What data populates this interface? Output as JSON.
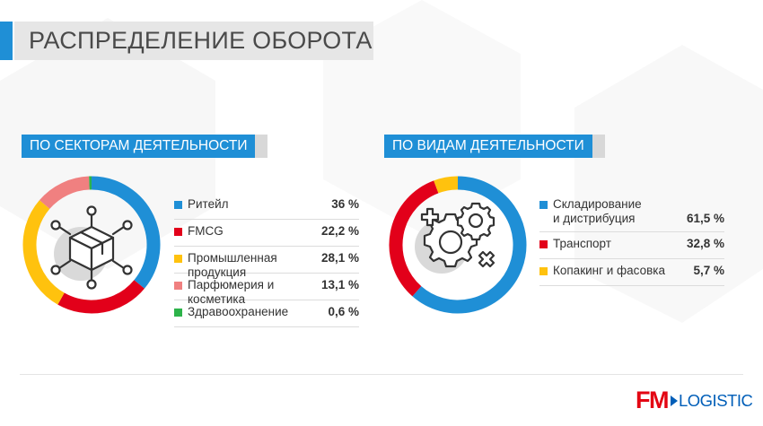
{
  "title": "РАСПРЕДЕЛЕНИЕ ОБОРОТА",
  "left_section": {
    "heading": "ПО СЕКТОРАМ ДЕЯТЕЛЬНОСТИ",
    "icon": "network-package-icon"
  },
  "right_section": {
    "heading": "ПО ВИДАМ ДЕЯТЕЛЬНОСТИ",
    "icon": "gears-icon"
  },
  "chart_data": [
    {
      "type": "pie",
      "categories": [
        "Ритейл",
        "FMCG",
        "Промышленная продукция",
        "Парфюмерия и косметика",
        "Здравоохранение"
      ],
      "values": [
        36,
        22.2,
        28.1,
        13.1,
        0.6
      ],
      "value_labels": [
        "36 %",
        "22,2 %",
        "28,1 %",
        "13,1 %",
        "0,6 %"
      ],
      "colors": [
        "#1f8fd6",
        "#e2001a",
        "#ffc20e",
        "#f08080",
        "#2db34a"
      ]
    },
    {
      "type": "pie",
      "categories": [
        "Складирование и дистрибуция",
        "Транспорт",
        "Копакинг и фасовка"
      ],
      "label_lines": [
        [
          "Складирование",
          "и дистрибуция"
        ],
        [
          "Транспорт"
        ],
        [
          "Копакинг и фасовка"
        ]
      ],
      "values": [
        61.5,
        32.8,
        5.7
      ],
      "value_labels": [
        "61,5 %",
        "32,8 %",
        "5,7 %"
      ],
      "colors": [
        "#1f8fd6",
        "#e2001a",
        "#ffc20e"
      ]
    }
  ],
  "logo": {
    "fm": "FM",
    "logistic": "LOGISTIC"
  }
}
